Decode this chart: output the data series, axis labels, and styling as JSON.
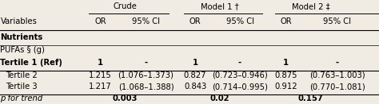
{
  "bg_color": "#f0ebe3",
  "line_color": "#000000",
  "font_size": 7.2,
  "col_x": {
    "label": 0.001,
    "c_or": 0.24,
    "c_ci": 0.33,
    "m1_or": 0.49,
    "m1_ci": 0.578,
    "m2_or": 0.73,
    "m2_ci": 0.82
  },
  "rows": {
    "header1": 0.93,
    "header2": 0.775,
    "nutrients": 0.61,
    "pufas": 0.48,
    "t1": 0.35,
    "t2": 0.22,
    "t3": 0.1,
    "ptrend": -0.025
  },
  "crude_label": "Crude",
  "m1_label": "Model 1 †",
  "m2_label": "Model 2 ‡",
  "nutrients_label": "Nutrients",
  "pufas_label": "PUFAs § (g)",
  "dash": "-",
  "t1_label": "Tertile 1 (Ref)",
  "t2_label": "Tertile 2",
  "t3_label": "Tertile 3",
  "ptrend_label": "p for trend",
  "t1_vals": [
    "1",
    "-",
    "1",
    "-",
    "1",
    "-"
  ],
  "t2_vals": [
    "1.215",
    "(1.076–1.373)",
    "0.827",
    "(0.723–0.946)",
    "0.875",
    "(0.763–1.003)"
  ],
  "t3_vals": [
    "1.217",
    "(1.068–1.388)",
    "0.843",
    "(0.714–0.995)",
    "0.912",
    "(0.770–1.081)"
  ],
  "ptrend_vals": [
    "0.003",
    "0.02",
    "0.157"
  ]
}
